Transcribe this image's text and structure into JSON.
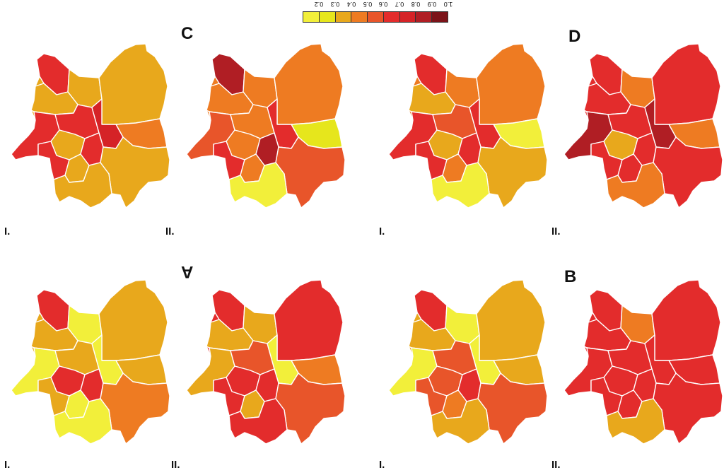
{
  "legend": {
    "ticks": [
      "0.2",
      "0.3",
      "0.4",
      "0.5",
      "0.6",
      "0.7",
      "0.8",
      "0.9",
      "1.0"
    ],
    "colors": [
      "#f2ef3a",
      "#e6e61c",
      "#e8a81c",
      "#ee7b22",
      "#e8552a",
      "#e32c2c",
      "#d52327",
      "#b01e24",
      "#7c1319"
    ]
  },
  "panels": [
    {
      "letter": "C",
      "letter_flipped": false,
      "maps": [
        {
          "label": "I.",
          "colors": [
            "#e32c2c",
            "#e8a81c",
            "#e8a81c",
            "#e8a81c",
            "#e32c2c",
            "#ee7b22",
            "#e32c2c",
            "#d52327",
            "#e8a81c",
            "#e32c2c",
            "#e32c2c",
            "#e8a81c",
            "#e8a81c",
            "#e8a81c"
          ]
        },
        {
          "label": "II.",
          "colors": [
            "#b01e24",
            "#ee7b22",
            "#ee7b22",
            "#ee7b22",
            "#e8552a",
            "#e6e61c",
            "#ee7b22",
            "#e32c2c",
            "#ee7b22",
            "#b01e24",
            "#e32c2c",
            "#ee7b22",
            "#e8552a",
            "#f2ef3a"
          ]
        }
      ]
    },
    {
      "letter": "D",
      "letter_flipped": false,
      "maps": [
        {
          "label": "I.",
          "colors": [
            "#e32c2c",
            "#ee7b22",
            "#ee7b22",
            "#e8a81c",
            "#e32c2c",
            "#f2ef3a",
            "#e8552a",
            "#e32c2c",
            "#e8a81c",
            "#e32c2c",
            "#e32c2c",
            "#ee7b22",
            "#e8a81c",
            "#f2ef3a"
          ]
        },
        {
          "label": "II.",
          "colors": [
            "#e32c2c",
            "#ee7b22",
            "#e32c2c",
            "#e32c2c",
            "#b01e24",
            "#ee7b22",
            "#e32c2c",
            "#b01e24",
            "#e8a81c",
            "#e32c2c",
            "#e32c2c",
            "#e32c2c",
            "#e32c2c",
            "#ee7b22"
          ]
        }
      ]
    },
    {
      "letter": "A",
      "letter_flipped": true,
      "maps": [
        {
          "label": "I.",
          "colors": [
            "#e32c2c",
            "#f2ef3a",
            "#e8a81c",
            "#e8a81c",
            "#f2ef3a",
            "#e8a81c",
            "#e8a81c",
            "#f2ef3a",
            "#e32c2c",
            "#e32c2c",
            "#e8a81c",
            "#f2ef3a",
            "#ee7b22",
            "#f2ef3a"
          ]
        },
        {
          "label": "II.",
          "colors": [
            "#e32c2c",
            "#e8a81c",
            "#e32c2c",
            "#e8a81c",
            "#e8a81c",
            "#ee7b22",
            "#e8552a",
            "#f2ef3a",
            "#e32c2c",
            "#e32c2c",
            "#e32c2c",
            "#e8a81c",
            "#e8552a",
            "#e32c2c"
          ]
        }
      ]
    },
    {
      "letter": "B",
      "letter_flipped": false,
      "maps": [
        {
          "label": "I.",
          "colors": [
            "#e32c2c",
            "#f2ef3a",
            "#e8a81c",
            "#e8a81c",
            "#f2ef3a",
            "#e8a81c",
            "#e8552a",
            "#f2ef3a",
            "#e8552a",
            "#e32c2c",
            "#e8552a",
            "#ee7b22",
            "#e8552a",
            "#e8a81c"
          ]
        },
        {
          "label": "II.",
          "colors": [
            "#e32c2c",
            "#ee7b22",
            "#e32c2c",
            "#e32c2c",
            "#e32c2c",
            "#e32c2c",
            "#e32c2c",
            "#e32c2c",
            "#e32c2c",
            "#e32c2c",
            "#e32c2c",
            "#e32c2c",
            "#e32c2c",
            "#e8a81c"
          ]
        }
      ]
    }
  ]
}
